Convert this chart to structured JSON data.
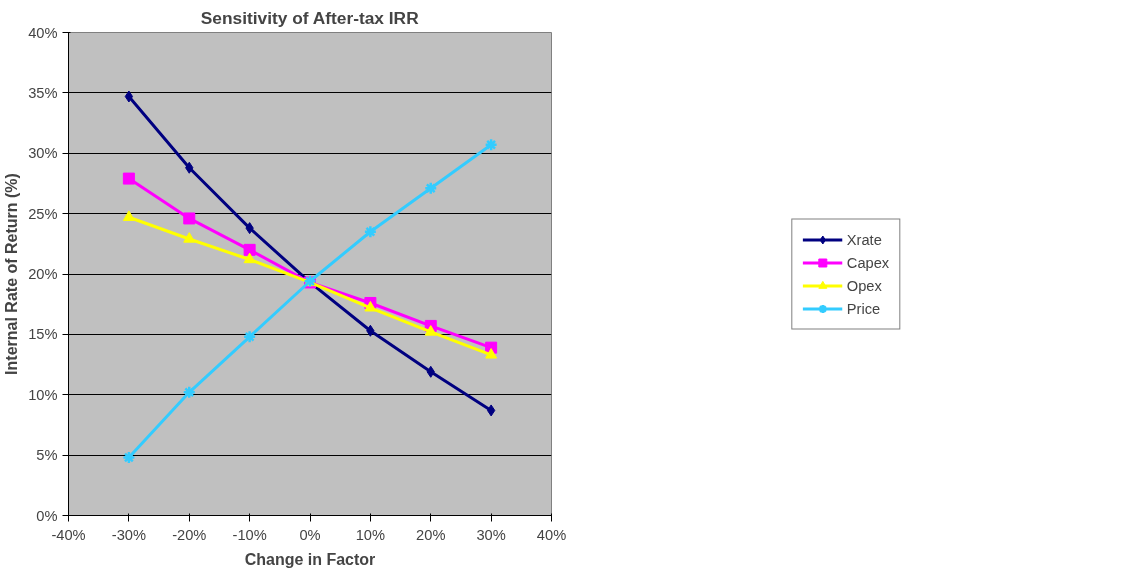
{
  "chart_data": {
    "type": "line",
    "title": "Sensitivity of After-tax IRR",
    "xlabel": "Change in Factor",
    "ylabel": "Internal Rate of Return (%)",
    "x": [
      -30,
      -20,
      -10,
      0,
      10,
      20,
      30
    ],
    "series": [
      {
        "name": "Xrate",
        "color": "#000080",
        "marker": "diamond",
        "values": [
          34.7,
          28.8,
          23.8,
          19.3,
          15.3,
          11.9,
          8.7
        ]
      },
      {
        "name": "Capex",
        "color": "#ff00ff",
        "marker": "square",
        "values": [
          27.9,
          24.6,
          22.0,
          19.3,
          17.6,
          15.7,
          13.9
        ]
      },
      {
        "name": "Opex",
        "color": "#ffff00",
        "marker": "triangle",
        "values": [
          24.7,
          22.9,
          21.2,
          19.3,
          17.2,
          15.2,
          13.3
        ]
      },
      {
        "name": "Price",
        "color": "#33ccff",
        "marker": "cross",
        "values": [
          4.8,
          10.2,
          14.8,
          19.4,
          23.5,
          27.1,
          30.7
        ]
      }
    ],
    "xlim": [
      -40,
      40
    ],
    "ylim": [
      0,
      40
    ],
    "xticks": [
      {
        "value": -40,
        "label": "-40%"
      },
      {
        "value": -30,
        "label": "-30%"
      },
      {
        "value": -20,
        "label": "-20%"
      },
      {
        "value": -10,
        "label": "-10%"
      },
      {
        "value": 0,
        "label": "0%"
      },
      {
        "value": 10,
        "label": "10%"
      },
      {
        "value": 20,
        "label": "20%"
      },
      {
        "value": 30,
        "label": "30%"
      },
      {
        "value": 40,
        "label": "40%"
      }
    ],
    "yticks": [
      {
        "value": 0,
        "label": "0%"
      },
      {
        "value": 5,
        "label": "5%"
      },
      {
        "value": 10,
        "label": "10%"
      },
      {
        "value": 15,
        "label": "15%"
      },
      {
        "value": 20,
        "label": "20%"
      },
      {
        "value": 25,
        "label": "25%"
      },
      {
        "value": 30,
        "label": "30%"
      },
      {
        "value": 35,
        "label": "35%"
      },
      {
        "value": 40,
        "label": "40%"
      }
    ],
    "grid": "y",
    "legend": "right",
    "line_style": "solid"
  }
}
